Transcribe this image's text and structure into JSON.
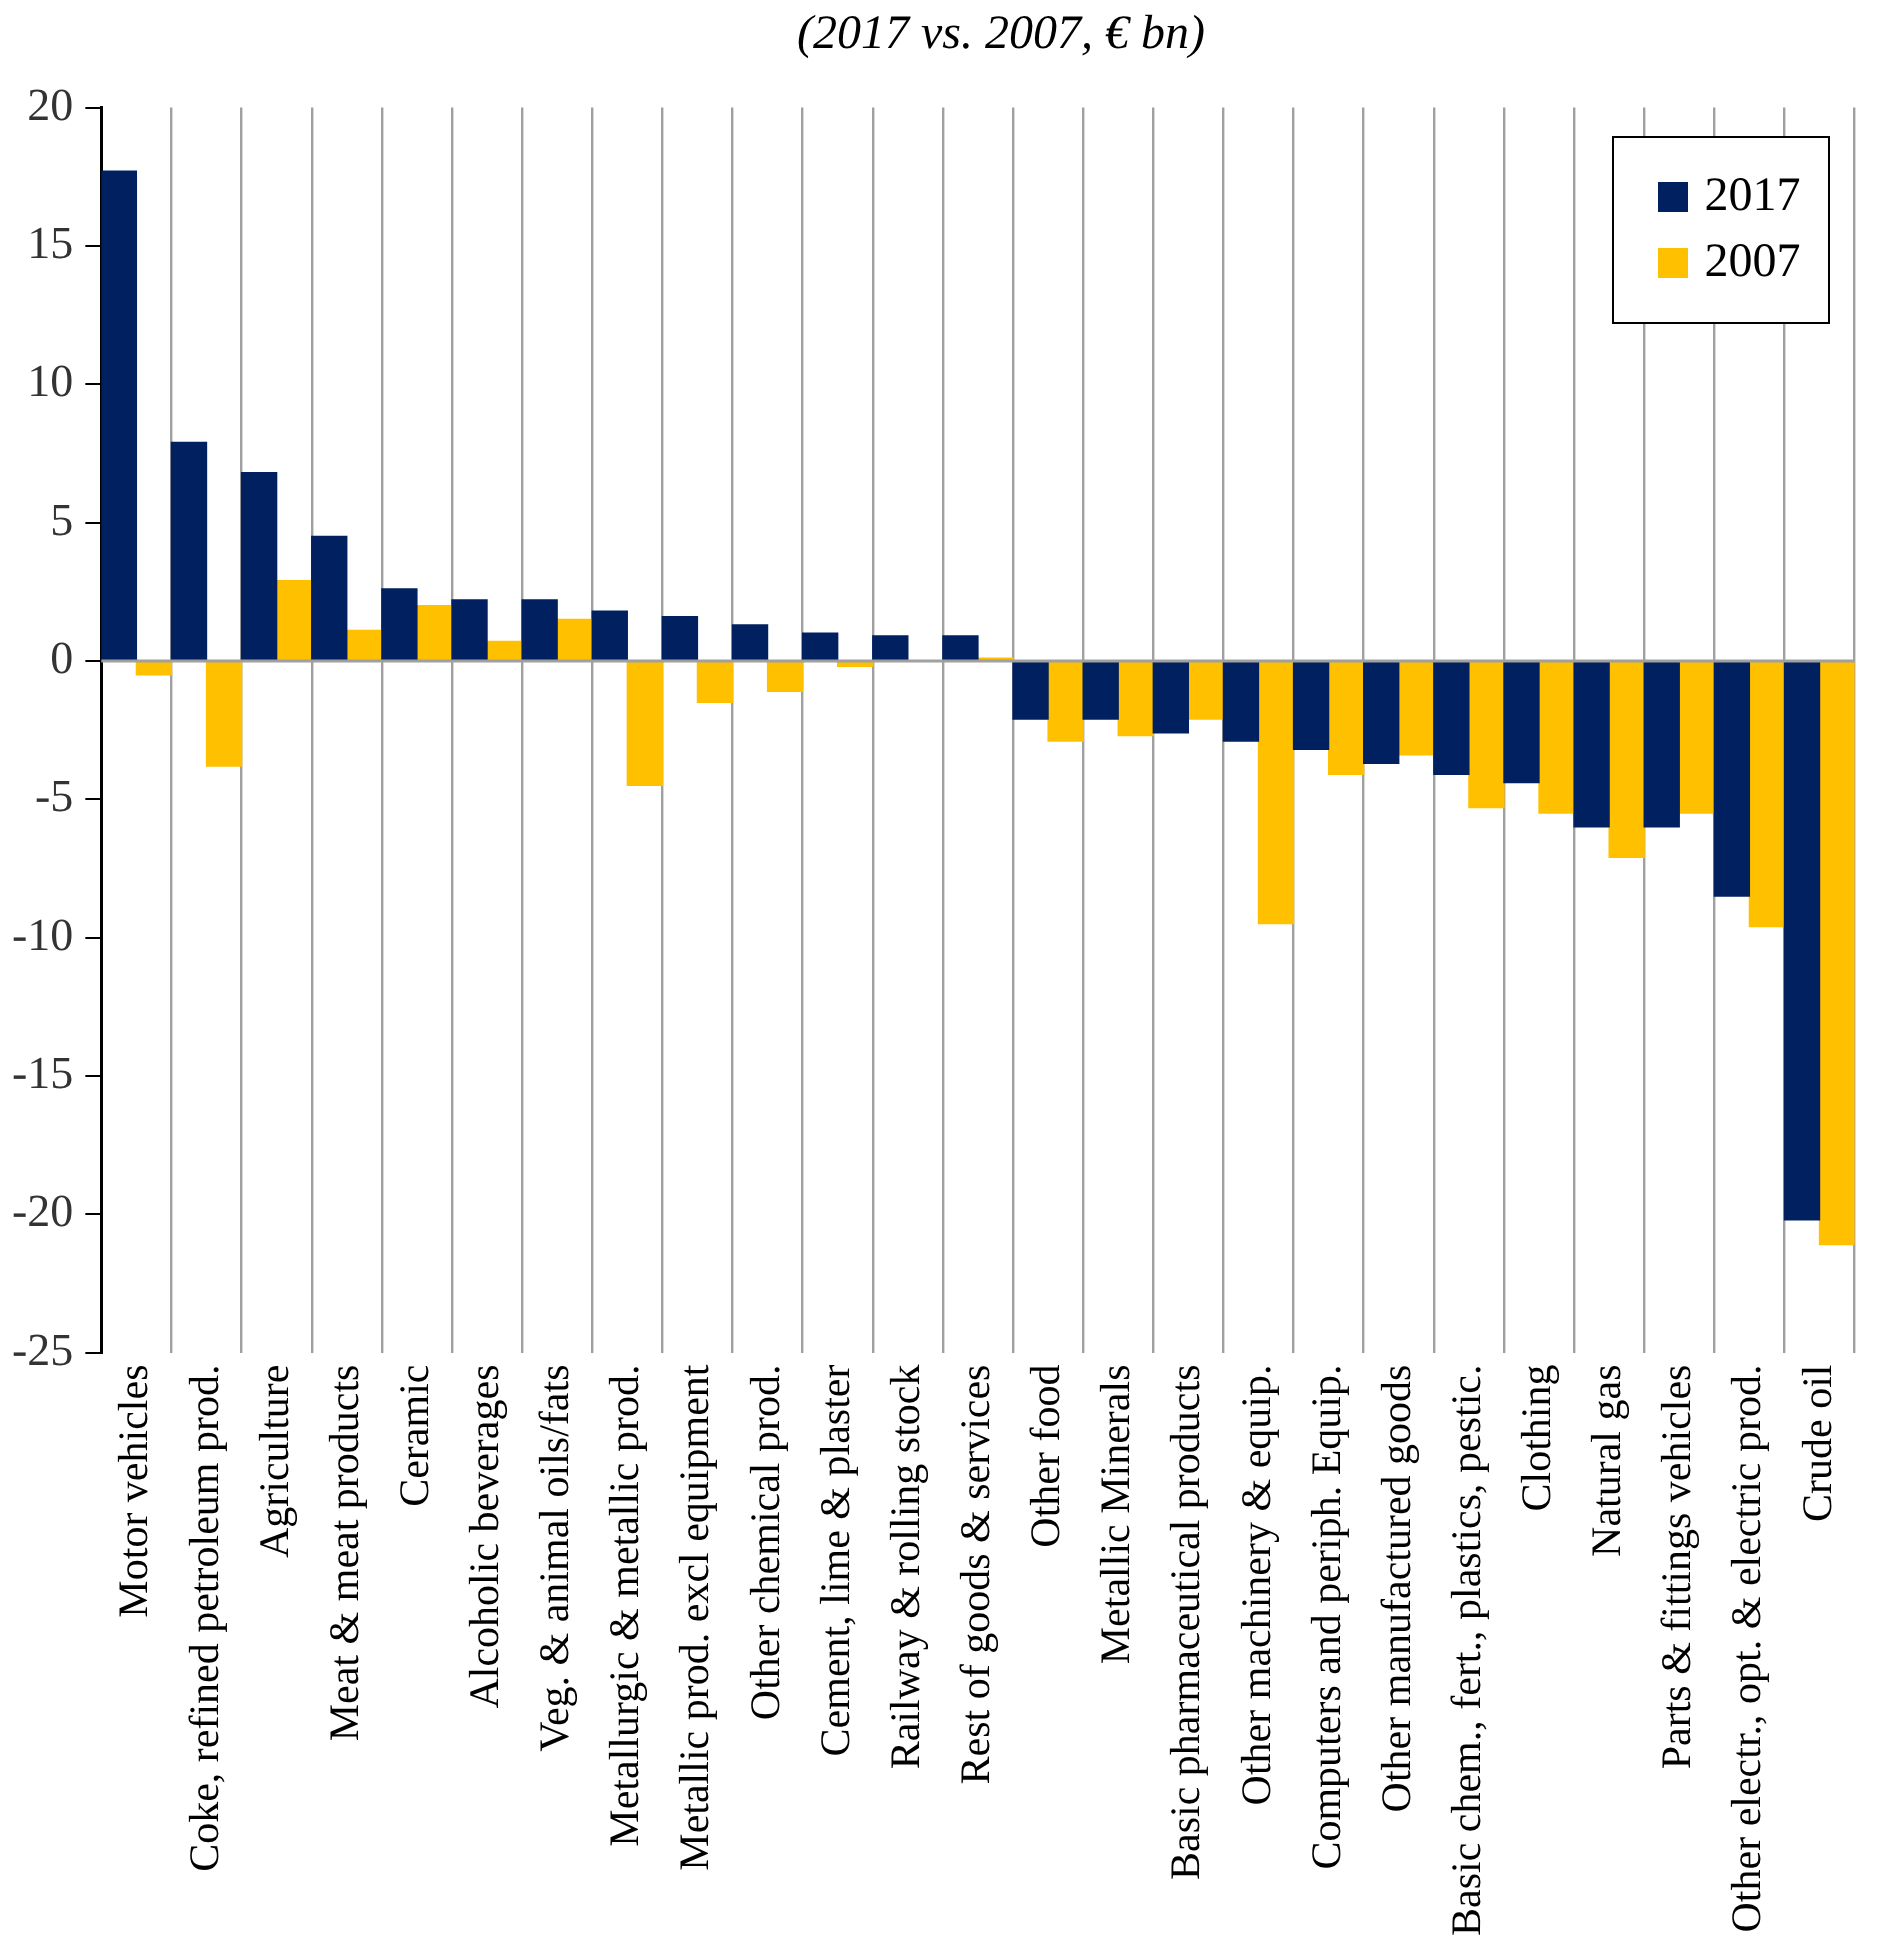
{
  "chart_data": {
    "type": "bar",
    "title": "(2017 vs. 2007, € bn)",
    "categories": [
      "Motor vehicles",
      "Coke, refined petroleum prod.",
      "Agriculture",
      "Meat & meat products",
      "Ceramic",
      "Alcoholic beverages",
      "Veg. & animal oils/fats",
      "Metallurgic & metallic prod.",
      "Metallic prod. excl equipment",
      "Other chemical prod.",
      "Cement, lime & plaster",
      "Railway & rolling stock",
      "Rest of goods & services",
      "Other food",
      "Metallic Minerals",
      "Basic pharmaceutical products",
      "Other machinery & equip.",
      "Computers and periph. Equip.",
      "Other manufactured goods",
      "Basic chem., fert., plastics, pestic.",
      "Clothing",
      "Natural gas",
      "Parts & fittings vehicles",
      "Other electr., opt. & electric prod.",
      "Crude oil"
    ],
    "series": [
      {
        "name": "2017",
        "color": "#002060",
        "values": [
          17.7,
          7.9,
          6.8,
          4.5,
          2.6,
          2.2,
          2.2,
          1.8,
          1.6,
          1.3,
          1.0,
          0.9,
          0.9,
          -2.1,
          -2.1,
          -2.6,
          -2.9,
          -3.2,
          -3.7,
          -4.1,
          -4.4,
          -6.0,
          -6.0,
          -8.5,
          -20.2
        ]
      },
      {
        "name": "2007",
        "color": "#ffc000",
        "values": [
          -0.5,
          -3.8,
          2.9,
          1.1,
          2.0,
          0.7,
          1.5,
          -4.5,
          -1.5,
          -1.1,
          -0.2,
          0,
          0.1,
          -2.9,
          -2.7,
          -2.1,
          -9.5,
          -4.1,
          -3.4,
          -5.3,
          -5.5,
          -7.1,
          -5.5,
          -9.6,
          -21.1
        ]
      }
    ],
    "ylim": [
      -25,
      20
    ],
    "yticks": [
      -25,
      -20,
      -15,
      -10,
      -5,
      0,
      5,
      10,
      15,
      20
    ],
    "grid": "x",
    "legend": "top right"
  }
}
